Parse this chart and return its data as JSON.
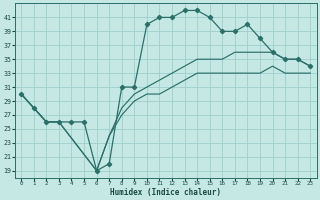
{
  "title": "",
  "xlabel": "Humidex (Indice chaleur)",
  "background_color": "#c5e8e5",
  "grid_color": "#9ecece",
  "line_color": "#2a7068",
  "x_min": -0.5,
  "x_max": 23.5,
  "y_min": 18,
  "y_max": 43,
  "yticks": [
    19,
    21,
    23,
    25,
    27,
    29,
    31,
    33,
    35,
    37,
    39,
    41
  ],
  "xticks": [
    0,
    1,
    2,
    3,
    4,
    5,
    6,
    7,
    8,
    9,
    10,
    11,
    12,
    13,
    14,
    15,
    16,
    17,
    18,
    19,
    20,
    21,
    22,
    23
  ],
  "series": [
    {
      "x": [
        0,
        1,
        2,
        3,
        4,
        5,
        6,
        7,
        8,
        9,
        10,
        11,
        12,
        13,
        14,
        15,
        16,
        17,
        18,
        19,
        20,
        21,
        22,
        23
      ],
      "y": [
        30,
        28,
        26,
        26,
        26,
        26,
        19,
        20,
        31,
        31,
        40,
        41,
        41,
        42,
        42,
        41,
        39,
        39,
        40,
        38,
        36,
        35,
        35,
        34
      ],
      "marker": "D",
      "markersize": 2.2,
      "linewidth": 0.9
    },
    {
      "x": [
        0,
        2,
        3,
        6,
        7,
        8,
        9,
        10,
        11,
        12,
        13,
        14,
        15,
        16,
        17,
        18,
        19,
        20,
        21,
        22,
        23
      ],
      "y": [
        30,
        26,
        26,
        19,
        24,
        28,
        30,
        31,
        32,
        33,
        34,
        35,
        35,
        35,
        36,
        36,
        36,
        36,
        35,
        35,
        34
      ],
      "marker": null,
      "markersize": 0,
      "linewidth": 0.85
    },
    {
      "x": [
        0,
        2,
        3,
        6,
        7,
        8,
        9,
        10,
        11,
        12,
        13,
        14,
        15,
        16,
        17,
        18,
        19,
        20,
        21,
        22,
        23
      ],
      "y": [
        30,
        26,
        26,
        19,
        24,
        27,
        29,
        30,
        30,
        31,
        32,
        33,
        33,
        33,
        33,
        33,
        33,
        34,
        33,
        33,
        33
      ],
      "marker": null,
      "markersize": 0,
      "linewidth": 0.85
    }
  ]
}
